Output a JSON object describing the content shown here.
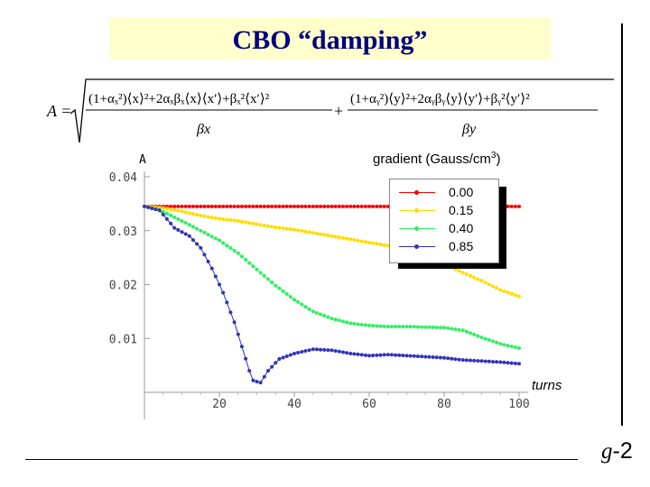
{
  "slide": {
    "title": "CBO “damping”",
    "gradient_label": "gradient  (Gauss/cm",
    "gradient_exp": "3",
    "gradient_close": ")",
    "slide_number_g": "g",
    "slide_number_rest": "-2"
  },
  "formula": {
    "lhs": "A =",
    "x_beta": "βx",
    "y_beta": "βy"
  },
  "chart_data": {
    "type": "line",
    "ylabel": "A",
    "xlabel": "turns",
    "xlim": [
      0,
      100
    ],
    "ylim": [
      0,
      0.04
    ],
    "xticks": [
      20,
      40,
      60,
      80,
      100
    ],
    "yticks": [
      0.01,
      0.02,
      0.03,
      0.04
    ],
    "ytick_labels": [
      "0.01",
      "0.02",
      "0.03",
      "0.04"
    ],
    "legend_title": "gradient  (Gauss/cm3)",
    "legend_position": "top-right",
    "series": [
      {
        "name": "0.00",
        "color": "#ff0000",
        "points": [
          [
            0,
            0.0345
          ],
          [
            100,
            0.0345
          ]
        ]
      },
      {
        "name": "0.15",
        "color": "#ffdd00",
        "points": [
          [
            0,
            0.0345
          ],
          [
            5,
            0.0342
          ],
          [
            10,
            0.0336
          ],
          [
            15,
            0.0328
          ],
          [
            20,
            0.0322
          ],
          [
            25,
            0.0318
          ],
          [
            30,
            0.0312
          ],
          [
            35,
            0.0306
          ],
          [
            40,
            0.0302
          ],
          [
            45,
            0.0296
          ],
          [
            50,
            0.029
          ],
          [
            55,
            0.0284
          ],
          [
            60,
            0.0278
          ],
          [
            65,
            0.0272
          ],
          [
            70,
            0.0264
          ],
          [
            75,
            0.0252
          ],
          [
            80,
            0.0238
          ],
          [
            85,
            0.0222
          ],
          [
            90,
            0.0207
          ],
          [
            95,
            0.019
          ],
          [
            100,
            0.0178
          ]
        ]
      },
      {
        "name": "0.40",
        "color": "#33ee66",
        "points": [
          [
            0,
            0.0345
          ],
          [
            5,
            0.0335
          ],
          [
            10,
            0.0318
          ],
          [
            15,
            0.03
          ],
          [
            20,
            0.0282
          ],
          [
            25,
            0.0258
          ],
          [
            30,
            0.0228
          ],
          [
            35,
            0.0198
          ],
          [
            40,
            0.0172
          ],
          [
            45,
            0.015
          ],
          [
            50,
            0.0137
          ],
          [
            55,
            0.0128
          ],
          [
            60,
            0.0124
          ],
          [
            65,
            0.0122
          ],
          [
            70,
            0.0122
          ],
          [
            75,
            0.0121
          ],
          [
            80,
            0.012
          ],
          [
            85,
            0.0115
          ],
          [
            90,
            0.0102
          ],
          [
            95,
            0.009
          ],
          [
            100,
            0.0082
          ]
        ]
      },
      {
        "name": "0.85",
        "color": "#3333bb",
        "points": [
          [
            0,
            0.0345
          ],
          [
            4,
            0.0338
          ],
          [
            8,
            0.0305
          ],
          [
            12,
            0.029
          ],
          [
            15,
            0.0268
          ],
          [
            18,
            0.023
          ],
          [
            21,
            0.0185
          ],
          [
            24,
            0.013
          ],
          [
            26,
            0.0085
          ],
          [
            28,
            0.004
          ],
          [
            29,
            0.0022
          ],
          [
            31,
            0.0018
          ],
          [
            33,
            0.004
          ],
          [
            36,
            0.0062
          ],
          [
            40,
            0.0072
          ],
          [
            45,
            0.008
          ],
          [
            50,
            0.0078
          ],
          [
            55,
            0.0072
          ],
          [
            60,
            0.0068
          ],
          [
            65,
            0.007
          ],
          [
            70,
            0.0068
          ],
          [
            75,
            0.0066
          ],
          [
            80,
            0.0064
          ],
          [
            85,
            0.006
          ],
          [
            90,
            0.0058
          ],
          [
            95,
            0.0056
          ],
          [
            100,
            0.0053
          ]
        ]
      }
    ]
  }
}
